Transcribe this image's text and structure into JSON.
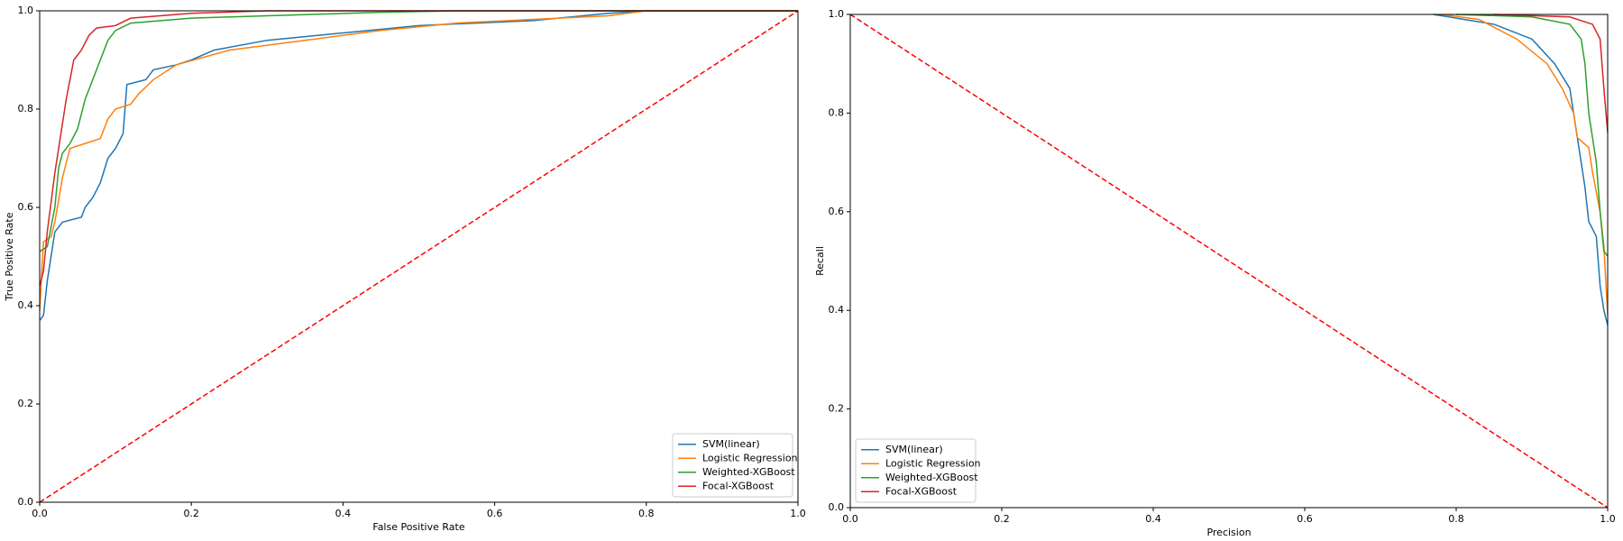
{
  "chart_data": [
    {
      "type": "line",
      "xlabel": "False Positive Rate",
      "ylabel": "True Positive Rate",
      "xlim": [
        0,
        1
      ],
      "ylim": [
        0,
        1
      ],
      "xticks": [
        {
          "value": 0,
          "label": "0.0"
        },
        0.2,
        0.4,
        0.6,
        0.8,
        {
          "value": 1,
          "label": "1.0"
        }
      ],
      "yticks": [
        {
          "value": 0,
          "label": "0.0"
        },
        0.2,
        0.4,
        0.6,
        0.8,
        {
          "value": 1,
          "label": "1.0"
        }
      ],
      "legend": "lower right",
      "reference_line": {
        "x": [
          0,
          1
        ],
        "values": [
          0,
          1
        ],
        "color": "#ff0000",
        "style": "dashed"
      },
      "series": [
        {
          "name": "SVM(linear)",
          "color": "#1f77b4",
          "x": [
            0,
            0.005,
            0.01,
            0.015,
            0.02,
            0.03,
            0.055,
            0.06,
            0.07,
            0.08,
            0.09,
            0.1,
            0.11,
            0.115,
            0.14,
            0.15,
            0.18,
            0.2,
            0.23,
            0.3,
            0.4,
            0.5,
            0.65,
            0.75,
            0.8,
            1
          ],
          "values": [
            0.37,
            0.38,
            0.45,
            0.5,
            0.55,
            0.57,
            0.58,
            0.6,
            0.62,
            0.65,
            0.7,
            0.72,
            0.75,
            0.85,
            0.86,
            0.88,
            0.89,
            0.9,
            0.92,
            0.94,
            0.955,
            0.97,
            0.98,
            0.995,
            1,
            1
          ]
        },
        {
          "name": "Logistic Regression",
          "color": "#ff7f0e",
          "x": [
            0,
            0.005,
            0.015,
            0.02,
            0.03,
            0.04,
            0.06,
            0.08,
            0.09,
            0.1,
            0.12,
            0.13,
            0.15,
            0.18,
            0.25,
            0.35,
            0.45,
            0.55,
            0.75,
            0.8,
            1
          ],
          "values": [
            0.39,
            0.53,
            0.54,
            0.57,
            0.66,
            0.72,
            0.73,
            0.74,
            0.78,
            0.8,
            0.81,
            0.83,
            0.86,
            0.89,
            0.92,
            0.94,
            0.96,
            0.975,
            0.99,
            1,
            1
          ]
        },
        {
          "name": "Weighted-XGBoost",
          "color": "#2ca02c",
          "x": [
            0,
            0.01,
            0.02,
            0.025,
            0.03,
            0.04,
            0.05,
            0.06,
            0.07,
            0.08,
            0.09,
            0.1,
            0.12,
            0.2,
            0.3,
            0.45,
            0.55,
            1
          ],
          "values": [
            0.51,
            0.52,
            0.6,
            0.68,
            0.71,
            0.73,
            0.76,
            0.82,
            0.86,
            0.9,
            0.94,
            0.96,
            0.975,
            0.985,
            0.99,
            0.997,
            1,
            1
          ]
        },
        {
          "name": "Focal-XGBoost",
          "color": "#d62728",
          "x": [
            0,
            0.005,
            0.01,
            0.015,
            0.02,
            0.025,
            0.03,
            0.035,
            0.04,
            0.045,
            0.055,
            0.065,
            0.075,
            0.1,
            0.12,
            0.2,
            0.3,
            1
          ],
          "values": [
            0.44,
            0.47,
            0.55,
            0.61,
            0.67,
            0.72,
            0.77,
            0.82,
            0.86,
            0.9,
            0.92,
            0.95,
            0.965,
            0.97,
            0.985,
            0.995,
            1,
            1
          ]
        }
      ]
    },
    {
      "type": "line",
      "xlabel": "Precision",
      "ylabel": "Recall",
      "xlim": [
        0,
        1
      ],
      "ylim": [
        0,
        1
      ],
      "xticks": [
        {
          "value": 0,
          "label": "0.0"
        },
        0.2,
        0.4,
        0.6,
        0.8,
        {
          "value": 1,
          "label": "1.0"
        }
      ],
      "yticks": [
        {
          "value": 0,
          "label": "0.0"
        },
        0.2,
        0.4,
        0.6,
        0.8,
        {
          "value": 1,
          "label": "1.0"
        }
      ],
      "legend": "lower left",
      "reference_line": {
        "x": [
          0,
          1
        ],
        "values": [
          1,
          0
        ],
        "color": "#ff0000",
        "style": "dashed"
      },
      "series": [
        {
          "name": "SVM(linear)",
          "color": "#1f77b4",
          "x": [
            0.77,
            0.85,
            0.9,
            0.93,
            0.95,
            0.96,
            0.97,
            0.975,
            0.985,
            0.99,
            0.995,
            1
          ],
          "values": [
            1,
            0.98,
            0.95,
            0.9,
            0.85,
            0.75,
            0.65,
            0.58,
            0.55,
            0.45,
            0.4,
            0.37
          ]
        },
        {
          "name": "Logistic Regression",
          "color": "#ff7f0e",
          "x": [
            0.78,
            0.83,
            0.88,
            0.92,
            0.94,
            0.955,
            0.96,
            0.975,
            0.98,
            0.99,
            0.995,
            1
          ],
          "values": [
            1,
            0.99,
            0.95,
            0.9,
            0.85,
            0.8,
            0.75,
            0.73,
            0.68,
            0.6,
            0.53,
            0.39
          ]
        },
        {
          "name": "Weighted-XGBoost",
          "color": "#2ca02c",
          "x": [
            0.8,
            0.9,
            0.95,
            0.965,
            0.97,
            0.975,
            0.985,
            0.99,
            0.995,
            1
          ],
          "values": [
            1,
            0.995,
            0.98,
            0.95,
            0.9,
            0.8,
            0.7,
            0.6,
            0.52,
            0.51
          ]
        },
        {
          "name": "Focal-XGBoost",
          "color": "#d62728",
          "x": [
            0.85,
            0.95,
            0.98,
            0.99,
            0.995,
            1
          ],
          "values": [
            1,
            0.995,
            0.98,
            0.95,
            0.85,
            0.76
          ]
        }
      ]
    }
  ]
}
